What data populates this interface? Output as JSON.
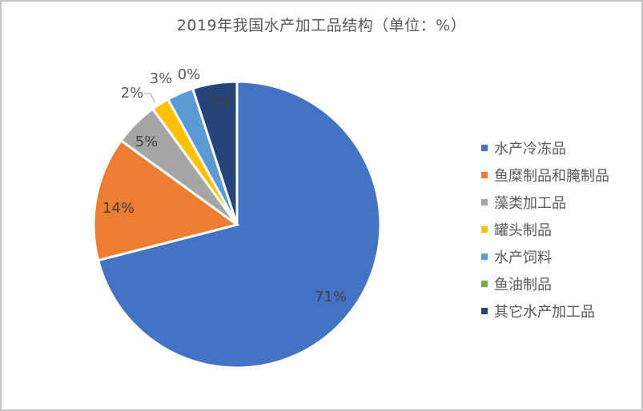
{
  "chart_data": {
    "type": "pie",
    "title": "2019年我国水产加工品结构（单位：%）",
    "categories": [
      "水产冷冻品",
      "鱼糜制品和腌制品",
      "藻类加工品",
      "罐头制品",
      "水产饲料",
      "鱼油制品",
      "其它水产加工品"
    ],
    "values": [
      71,
      14,
      5,
      2,
      3,
      0,
      5
    ],
    "labels": [
      "71%",
      "14%",
      "5%",
      "2%",
      "3%",
      "0%",
      "5%"
    ],
    "colors": [
      "#4472c4",
      "#ed7d31",
      "#a5a5a5",
      "#ffc000",
      "#5b9bd5",
      "#70ad47",
      "#264478"
    ],
    "legend_position": "right",
    "start_angle_deg": 0,
    "direction": "clockwise"
  },
  "title": "2019年我国水产加工品结构（单位：%）",
  "legend": [
    {
      "label": "水产冷冻品",
      "color": "#4472c4"
    },
    {
      "label": "鱼糜制品和腌制品",
      "color": "#ed7d31"
    },
    {
      "label": "藻类加工品",
      "color": "#a5a5a5"
    },
    {
      "label": "罐头制品",
      "color": "#ffc000"
    },
    {
      "label": "水产饲料",
      "color": "#5b9bd5"
    },
    {
      "label": "鱼油制品",
      "color": "#70ad47"
    },
    {
      "label": "其它水产加工品",
      "color": "#264478"
    }
  ]
}
